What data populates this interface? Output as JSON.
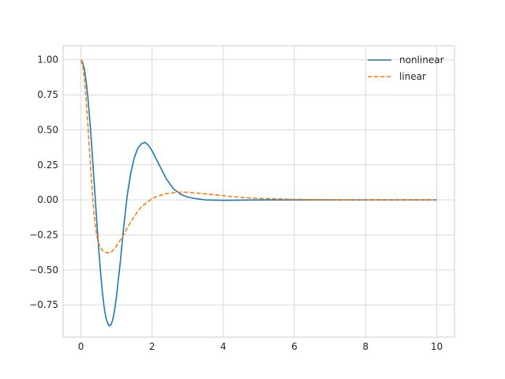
{
  "chart_data": {
    "type": "line",
    "title": "",
    "xlabel": "",
    "ylabel": "",
    "xlim": [
      -0.5,
      10.5
    ],
    "ylim": [
      -0.98,
      1.1
    ],
    "grid": true,
    "legend_position": "top-right",
    "xticks": [
      0,
      2,
      4,
      6,
      8,
      10
    ],
    "xtick_labels": [
      "0",
      "2",
      "4",
      "6",
      "8",
      "10"
    ],
    "yticks": [
      1.0,
      0.75,
      0.5,
      0.25,
      0.0,
      -0.25,
      -0.5,
      -0.75
    ],
    "ytick_labels": [
      "1.00",
      "0.75",
      "0.50",
      "0.25",
      "0.00",
      "−0.25",
      "−0.50",
      "−0.75"
    ],
    "series": [
      {
        "name": "nonlinear",
        "color": "#1f77b4",
        "dash": "solid",
        "points": [
          [
            0,
            1.0
          ],
          [
            0.05,
            0.98
          ],
          [
            0.1,
            0.93
          ],
          [
            0.15,
            0.84
          ],
          [
            0.2,
            0.72
          ],
          [
            0.25,
            0.57
          ],
          [
            0.3,
            0.4
          ],
          [
            0.35,
            0.21
          ],
          [
            0.4,
            0.02
          ],
          [
            0.45,
            -0.17
          ],
          [
            0.5,
            -0.35
          ],
          [
            0.55,
            -0.51
          ],
          [
            0.6,
            -0.65
          ],
          [
            0.65,
            -0.76
          ],
          [
            0.7,
            -0.84
          ],
          [
            0.75,
            -0.88
          ],
          [
            0.8,
            -0.9
          ],
          [
            0.85,
            -0.89
          ],
          [
            0.9,
            -0.85
          ],
          [
            0.95,
            -0.78
          ],
          [
            1.0,
            -0.69
          ],
          [
            1.1,
            -0.46
          ],
          [
            1.2,
            -0.2
          ],
          [
            1.3,
            0.03
          ],
          [
            1.4,
            0.19
          ],
          [
            1.5,
            0.3
          ],
          [
            1.6,
            0.37
          ],
          [
            1.7,
            0.4
          ],
          [
            1.8,
            0.41
          ],
          [
            1.9,
            0.39
          ],
          [
            2.0,
            0.35
          ],
          [
            2.2,
            0.25
          ],
          [
            2.4,
            0.15
          ],
          [
            2.6,
            0.08
          ],
          [
            2.8,
            0.04
          ],
          [
            3.0,
            0.02
          ],
          [
            3.2,
            0.01
          ],
          [
            3.5,
            0.0
          ],
          [
            4.0,
            -0.003
          ],
          [
            5.0,
            0.0
          ],
          [
            6.0,
            0.0
          ],
          [
            7.0,
            0.0
          ],
          [
            8.0,
            0.0
          ],
          [
            9.0,
            0.0
          ],
          [
            10.0,
            0.0
          ]
        ]
      },
      {
        "name": "linear",
        "color": "#ff7f0e",
        "dash": "dashed",
        "points": [
          [
            0,
            1.0
          ],
          [
            0.05,
            0.96
          ],
          [
            0.1,
            0.86
          ],
          [
            0.15,
            0.71
          ],
          [
            0.2,
            0.52
          ],
          [
            0.25,
            0.32
          ],
          [
            0.3,
            0.13
          ],
          [
            0.35,
            -0.04
          ],
          [
            0.4,
            -0.17
          ],
          [
            0.45,
            -0.26
          ],
          [
            0.5,
            -0.31
          ],
          [
            0.55,
            -0.34
          ],
          [
            0.6,
            -0.36
          ],
          [
            0.7,
            -0.375
          ],
          [
            0.8,
            -0.378
          ],
          [
            0.85,
            -0.375
          ],
          [
            0.9,
            -0.36
          ],
          [
            1.0,
            -0.33
          ],
          [
            1.1,
            -0.29
          ],
          [
            1.2,
            -0.25
          ],
          [
            1.3,
            -0.2
          ],
          [
            1.4,
            -0.16
          ],
          [
            1.5,
            -0.12
          ],
          [
            1.6,
            -0.08
          ],
          [
            1.7,
            -0.05
          ],
          [
            1.8,
            -0.03
          ],
          [
            1.9,
            -0.01
          ],
          [
            2.0,
            0.01
          ],
          [
            2.2,
            0.03
          ],
          [
            2.4,
            0.045
          ],
          [
            2.6,
            0.052
          ],
          [
            2.8,
            0.055
          ],
          [
            3.0,
            0.054
          ],
          [
            3.2,
            0.05
          ],
          [
            3.5,
            0.043
          ],
          [
            4.0,
            0.03
          ],
          [
            4.5,
            0.018
          ],
          [
            5.0,
            0.01
          ],
          [
            6.0,
            0.004
          ],
          [
            7.0,
            0.001
          ],
          [
            8.0,
            0.0
          ],
          [
            9.0,
            0.0
          ],
          [
            10.0,
            0.0
          ]
        ]
      }
    ]
  },
  "colors": {
    "background": "#ffffff",
    "grid": "#d9d9d9",
    "frame": "#cccccc",
    "text": "#262626"
  }
}
